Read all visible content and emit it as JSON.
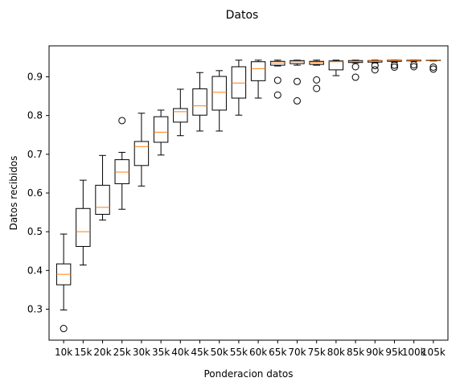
{
  "chart_data": {
    "type": "boxplot",
    "title": "Datos",
    "xlabel": "Ponderacion datos",
    "ylabel": "Datos recibidos",
    "ylim": [
      0.22,
      0.98
    ],
    "yticks": [
      0.3,
      0.4,
      0.5,
      0.6,
      0.7,
      0.8,
      0.9
    ],
    "grid": false,
    "colors": {
      "box": "#000000",
      "median": "#ff7f0e",
      "flier": "#000000"
    },
    "categories": [
      "10k",
      "15k",
      "20k",
      "25k",
      "30k",
      "35k",
      "40k",
      "45k",
      "50k",
      "55k",
      "60k",
      "65k",
      "70k",
      "75k",
      "80k",
      "85k",
      "90k",
      "95k",
      "100k",
      "105k"
    ],
    "boxes": [
      {
        "whislo": 0.298,
        "q1": 0.363,
        "med": 0.39,
        "q3": 0.417,
        "whishi": 0.494,
        "fliers": [
          0.25
        ]
      },
      {
        "whislo": 0.414,
        "q1": 0.462,
        "med": 0.5,
        "q3": 0.56,
        "whishi": 0.633,
        "fliers": []
      },
      {
        "whislo": 0.53,
        "q1": 0.545,
        "med": 0.563,
        "q3": 0.62,
        "whishi": 0.697,
        "fliers": []
      },
      {
        "whislo": 0.558,
        "q1": 0.624,
        "med": 0.654,
        "q3": 0.686,
        "whishi": 0.705,
        "fliers": [
          0.787
        ]
      },
      {
        "whislo": 0.618,
        "q1": 0.671,
        "med": 0.72,
        "q3": 0.733,
        "whishi": 0.806,
        "fliers": []
      },
      {
        "whislo": 0.698,
        "q1": 0.731,
        "med": 0.757,
        "q3": 0.797,
        "whishi": 0.814,
        "fliers": []
      },
      {
        "whislo": 0.748,
        "q1": 0.783,
        "med": 0.81,
        "q3": 0.818,
        "whishi": 0.868,
        "fliers": []
      },
      {
        "whislo": 0.76,
        "q1": 0.801,
        "med": 0.825,
        "q3": 0.869,
        "whishi": 0.911,
        "fliers": []
      },
      {
        "whislo": 0.76,
        "q1": 0.814,
        "med": 0.86,
        "q3": 0.901,
        "whishi": 0.916,
        "fliers": []
      },
      {
        "whislo": 0.801,
        "q1": 0.845,
        "med": 0.884,
        "q3": 0.926,
        "whishi": 0.943,
        "fliers": []
      },
      {
        "whislo": 0.845,
        "q1": 0.89,
        "med": 0.921,
        "q3": 0.939,
        "whishi": 0.943,
        "fliers": []
      },
      {
        "whislo": 0.928,
        "q1": 0.93,
        "med": 0.936,
        "q3": 0.94,
        "whishi": 0.943,
        "fliers": [
          0.891,
          0.853
        ]
      },
      {
        "whislo": 0.93,
        "q1": 0.934,
        "med": 0.939,
        "q3": 0.942,
        "whishi": 0.943,
        "fliers": [
          0.888,
          0.838
        ]
      },
      {
        "whislo": 0.93,
        "q1": 0.932,
        "med": 0.937,
        "q3": 0.94,
        "whishi": 0.943,
        "fliers": [
          0.892,
          0.87
        ]
      },
      {
        "whislo": 0.903,
        "q1": 0.918,
        "med": 0.939,
        "q3": 0.941,
        "whishi": 0.943,
        "fliers": []
      },
      {
        "whislo": 0.936,
        "q1": 0.937,
        "med": 0.94,
        "q3": 0.942,
        "whishi": 0.943,
        "fliers": [
          0.926,
          0.899
        ]
      },
      {
        "whislo": 0.936,
        "q1": 0.938,
        "med": 0.941,
        "q3": 0.942,
        "whishi": 0.943,
        "fliers": [
          0.929,
          0.918
        ]
      },
      {
        "whislo": 0.938,
        "q1": 0.94,
        "med": 0.942,
        "q3": 0.943,
        "whishi": 0.943,
        "fliers": [
          0.93,
          0.925
        ]
      },
      {
        "whislo": 0.94,
        "q1": 0.941,
        "med": 0.942,
        "q3": 0.943,
        "whishi": 0.943,
        "fliers": [
          0.931,
          0.926
        ]
      },
      {
        "whislo": 0.941,
        "q1": 0.942,
        "med": 0.943,
        "q3": 0.943,
        "whishi": 0.943,
        "fliers": [
          0.925,
          0.92
        ]
      }
    ]
  }
}
